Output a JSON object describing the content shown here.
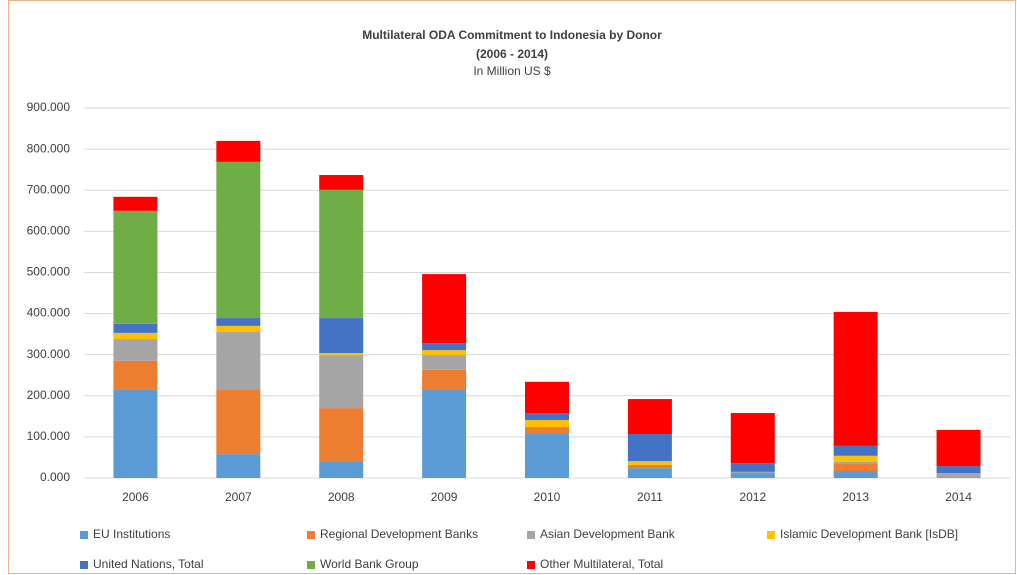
{
  "chart_data": {
    "type": "stacked_bar",
    "title": "Multilateral ODA Commitment to Indonesia by Donor",
    "subtitle": "(2006 - 2014)",
    "note": "In Million US $",
    "categories": [
      "2006",
      "2007",
      "2008",
      "2009",
      "2010",
      "2011",
      "2012",
      "2013",
      "2014"
    ],
    "series": [
      {
        "name": "EU Institutions",
        "color": "#5b9bd5",
        "values": [
          216,
          58,
          39,
          214,
          107,
          24,
          12,
          17,
          2
        ]
      },
      {
        "name": "Regional Development Banks",
        "color": "#ed7d31",
        "values": [
          69,
          156,
          131,
          49,
          17,
          8,
          0,
          19,
          0
        ]
      },
      {
        "name": "Asian Development Bank",
        "color": "#a5a5a5",
        "values": [
          53,
          141,
          129,
          36,
          0,
          0,
          3,
          3,
          10
        ]
      },
      {
        "name": "Islamic Development Bank [IsDB]",
        "color": "#ffc000",
        "values": [
          15,
          15,
          5,
          12,
          17,
          9,
          0,
          15,
          0
        ]
      },
      {
        "name": "United Nations, Total",
        "color": "#4472c4",
        "values": [
          22,
          19,
          85,
          17,
          17,
          66,
          21,
          24,
          17
        ]
      },
      {
        "name": "World Bank Group",
        "color": "#70ad47",
        "values": [
          275,
          380,
          312,
          0,
          0,
          0,
          0,
          0,
          0
        ]
      },
      {
        "name": "Other Multilateral, Total",
        "color": "#ff0000",
        "values": [
          34,
          51,
          36,
          168,
          76,
          85,
          122,
          326,
          88
        ]
      }
    ],
    "ylim": [
      0,
      900
    ],
    "yticks": [
      {
        "value": 0,
        "label": "0.000"
      },
      {
        "value": 100,
        "label": "100.000"
      },
      {
        "value": 200,
        "label": "200.000"
      },
      {
        "value": 300,
        "label": "300.000"
      },
      {
        "value": 400,
        "label": "400.000"
      },
      {
        "value": 500,
        "label": "500.000"
      },
      {
        "value": 600,
        "label": "600.000"
      },
      {
        "value": 700,
        "label": "700.000"
      },
      {
        "value": 800,
        "label": "800.000"
      },
      {
        "value": 900,
        "label": "900.000"
      }
    ],
    "grid": true,
    "legend": "bottom"
  }
}
